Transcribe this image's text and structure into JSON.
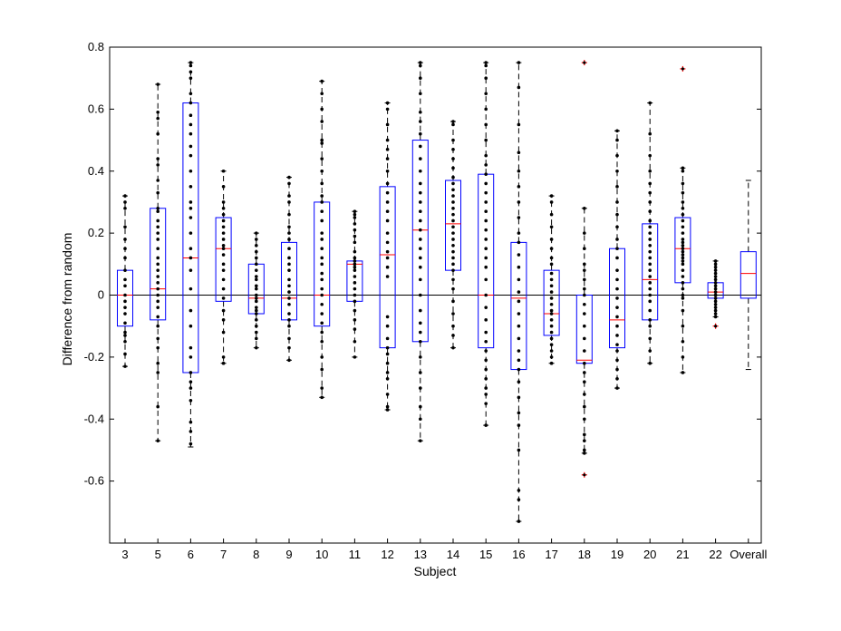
{
  "chart_data": {
    "type": "box",
    "xlabel": "Subject",
    "ylabel": "Difference from random",
    "ylim": [
      -0.8,
      0.8
    ],
    "yticks": [
      0.8,
      0.6,
      0.4,
      0.2,
      0,
      -0.2,
      -0.4,
      -0.6
    ],
    "ytick_labels": [
      "0.8",
      "0.6",
      "0.4",
      "0.2",
      "0",
      "-0.2",
      "-0.4",
      "-0.6"
    ],
    "grid": false,
    "reference_line_y": 0,
    "colors": {
      "box": "#0000ff",
      "median": "#ff0000",
      "whisker": "#000000",
      "points": "#000000",
      "outlier": "#ff0000"
    },
    "categories": [
      "3",
      "5",
      "6",
      "7",
      "8",
      "9",
      "10",
      "11",
      "12",
      "13",
      "14",
      "15",
      "16",
      "17",
      "18",
      "19",
      "20",
      "21",
      "22",
      "Overall"
    ],
    "boxes": [
      {
        "q1": -0.1,
        "median": 0.0,
        "q3": 0.08,
        "wlow": -0.23,
        "whigh": 0.32,
        "outliers": []
      },
      {
        "q1": -0.08,
        "median": 0.02,
        "q3": 0.28,
        "wlow": -0.47,
        "whigh": 0.68,
        "outliers": []
      },
      {
        "q1": -0.25,
        "median": 0.12,
        "q3": 0.62,
        "wlow": -0.49,
        "whigh": 0.75,
        "outliers": []
      },
      {
        "q1": -0.02,
        "median": 0.15,
        "q3": 0.25,
        "wlow": -0.22,
        "whigh": 0.4,
        "outliers": []
      },
      {
        "q1": -0.06,
        "median": -0.01,
        "q3": 0.1,
        "wlow": -0.17,
        "whigh": 0.2,
        "outliers": []
      },
      {
        "q1": -0.08,
        "median": -0.01,
        "q3": 0.17,
        "wlow": -0.21,
        "whigh": 0.38,
        "outliers": []
      },
      {
        "q1": -0.1,
        "median": 0.0,
        "q3": 0.3,
        "wlow": -0.33,
        "whigh": 0.69,
        "outliers": []
      },
      {
        "q1": -0.02,
        "median": 0.1,
        "q3": 0.11,
        "wlow": -0.2,
        "whigh": 0.27,
        "outliers": []
      },
      {
        "q1": -0.17,
        "median": 0.13,
        "q3": 0.35,
        "wlow": -0.37,
        "whigh": 0.62,
        "outliers": []
      },
      {
        "q1": -0.15,
        "median": 0.21,
        "q3": 0.5,
        "wlow": -0.47,
        "whigh": 0.75,
        "outliers": []
      },
      {
        "q1": 0.08,
        "median": 0.23,
        "q3": 0.37,
        "wlow": -0.17,
        "whigh": 0.56,
        "outliers": []
      },
      {
        "q1": -0.17,
        "median": 0.0,
        "q3": 0.39,
        "wlow": -0.42,
        "whigh": 0.75,
        "outliers": []
      },
      {
        "q1": -0.24,
        "median": -0.01,
        "q3": 0.17,
        "wlow": -0.73,
        "whigh": 0.75,
        "outliers": []
      },
      {
        "q1": -0.13,
        "median": -0.06,
        "q3": 0.08,
        "wlow": -0.22,
        "whigh": 0.32,
        "outliers": []
      },
      {
        "q1": -0.22,
        "median": -0.21,
        "q3": 0.0,
        "wlow": -0.51,
        "whigh": 0.28,
        "outliers": [
          0.75,
          -0.58
        ]
      },
      {
        "q1": -0.17,
        "median": -0.08,
        "q3": 0.15,
        "wlow": -0.3,
        "whigh": 0.53,
        "outliers": []
      },
      {
        "q1": -0.08,
        "median": 0.05,
        "q3": 0.23,
        "wlow": -0.22,
        "whigh": 0.62,
        "outliers": []
      },
      {
        "q1": 0.04,
        "median": 0.15,
        "q3": 0.25,
        "wlow": -0.25,
        "whigh": 0.41,
        "outliers": [
          0.73
        ]
      },
      {
        "q1": -0.01,
        "median": 0.01,
        "q3": 0.04,
        "wlow": -0.07,
        "whigh": 0.11,
        "outliers": [
          -0.1
        ]
      },
      {
        "q1": -0.01,
        "median": 0.07,
        "q3": 0.14,
        "wlow": -0.24,
        "whigh": 0.37,
        "outliers": []
      }
    ],
    "points": [
      [
        0.32,
        0.3,
        0.28,
        0.22,
        0.18,
        0.15,
        0.12,
        0.08,
        0.05,
        0.03,
        0.0,
        -0.02,
        -0.04,
        -0.06,
        -0.09,
        -0.12,
        -0.13,
        -0.15,
        -0.19,
        -0.23
      ],
      [
        0.68,
        0.59,
        0.57,
        0.52,
        0.44,
        0.42,
        0.37,
        0.33,
        0.28,
        0.27,
        0.24,
        0.22,
        0.2,
        0.18,
        0.15,
        0.12,
        0.1,
        0.08,
        0.06,
        0.04,
        0.02,
        0.0,
        -0.02,
        -0.04,
        -0.07,
        -0.1,
        -0.14,
        -0.17,
        -0.22,
        -0.25,
        -0.36,
        -0.47
      ],
      [
        0.75,
        0.74,
        0.72,
        0.7,
        0.65,
        0.62,
        0.58,
        0.55,
        0.52,
        0.48,
        0.45,
        0.4,
        0.35,
        0.3,
        0.28,
        0.25,
        0.2,
        0.15,
        0.12,
        0.08,
        0.02,
        -0.05,
        -0.1,
        -0.17,
        -0.2,
        -0.25,
        -0.28,
        -0.3,
        -0.34,
        -0.41,
        -0.44,
        -0.48
      ],
      [
        0.4,
        0.35,
        0.3,
        0.28,
        0.26,
        0.24,
        0.22,
        0.2,
        0.18,
        0.16,
        0.15,
        0.13,
        0.1,
        0.08,
        0.05,
        0.02,
        -0.01,
        -0.05,
        -0.08,
        -0.12,
        -0.2,
        -0.22
      ],
      [
        0.2,
        0.18,
        0.16,
        0.14,
        0.12,
        0.1,
        0.08,
        0.06,
        0.05,
        0.03,
        0.02,
        0.0,
        -0.01,
        -0.02,
        -0.04,
        -0.05,
        -0.06,
        -0.08,
        -0.1,
        -0.12,
        -0.14,
        -0.17
      ],
      [
        0.38,
        0.36,
        0.32,
        0.3,
        0.26,
        0.22,
        0.2,
        0.18,
        0.15,
        0.12,
        0.1,
        0.08,
        0.05,
        0.03,
        0.01,
        -0.01,
        -0.03,
        -0.06,
        -0.08,
        -0.1,
        -0.14,
        -0.17,
        -0.21
      ],
      [
        0.69,
        0.65,
        0.6,
        0.56,
        0.5,
        0.49,
        0.44,
        0.4,
        0.36,
        0.32,
        0.3,
        0.27,
        0.24,
        0.2,
        0.18,
        0.15,
        0.12,
        0.1,
        0.07,
        0.05,
        0.02,
        0.0,
        -0.03,
        -0.06,
        -0.09,
        -0.12,
        -0.15,
        -0.2,
        -0.24,
        -0.3,
        -0.33
      ],
      [
        0.27,
        0.26,
        0.25,
        0.23,
        0.21,
        0.19,
        0.17,
        0.14,
        0.12,
        0.11,
        0.1,
        0.09,
        0.08,
        0.06,
        0.04,
        0.02,
        0.0,
        -0.02,
        -0.05,
        -0.08,
        -0.11,
        -0.15,
        -0.2
      ],
      [
        0.62,
        0.6,
        0.55,
        0.5,
        0.47,
        0.44,
        0.4,
        0.36,
        0.33,
        0.3,
        0.27,
        0.24,
        0.2,
        0.17,
        0.14,
        0.12,
        0.09,
        0.06,
        -0.07,
        -0.1,
        -0.14,
        -0.17,
        -0.19,
        -0.22,
        -0.25,
        -0.27,
        -0.32,
        -0.36,
        -0.37
      ],
      [
        0.75,
        0.74,
        0.7,
        0.65,
        0.59,
        0.56,
        0.52,
        0.48,
        0.44,
        0.4,
        0.36,
        0.33,
        0.3,
        0.27,
        0.24,
        0.21,
        0.18,
        0.15,
        0.12,
        0.09,
        0.05,
        0.0,
        -0.05,
        -0.09,
        -0.12,
        -0.15,
        -0.2,
        -0.25,
        -0.3,
        -0.36,
        -0.4,
        -0.47
      ],
      [
        0.56,
        0.55,
        0.5,
        0.47,
        0.44,
        0.41,
        0.38,
        0.36,
        0.34,
        0.32,
        0.3,
        0.28,
        0.26,
        0.24,
        0.22,
        0.2,
        0.18,
        0.16,
        0.14,
        0.12,
        0.1,
        0.08,
        0.05,
        0.02,
        -0.02,
        -0.06,
        -0.1,
        -0.13,
        -0.17
      ],
      [
        0.75,
        0.74,
        0.7,
        0.65,
        0.6,
        0.55,
        0.5,
        0.45,
        0.42,
        0.39,
        0.36,
        0.33,
        0.3,
        0.27,
        0.24,
        0.21,
        0.18,
        0.15,
        0.12,
        0.09,
        0.05,
        0.0,
        -0.04,
        -0.08,
        -0.12,
        -0.15,
        -0.18,
        -0.21,
        -0.24,
        -0.27,
        -0.3,
        -0.32,
        -0.35,
        -0.42
      ],
      [
        0.75,
        0.67,
        0.55,
        0.46,
        0.4,
        0.35,
        0.3,
        0.25,
        0.2,
        0.17,
        0.13,
        0.09,
        0.05,
        0.01,
        -0.02,
        -0.06,
        -0.1,
        -0.14,
        -0.18,
        -0.21,
        -0.24,
        -0.28,
        -0.33,
        -0.38,
        -0.42,
        -0.5,
        -0.63,
        -0.66,
        -0.73
      ],
      [
        0.32,
        0.3,
        0.26,
        0.22,
        0.18,
        0.15,
        0.12,
        0.1,
        0.07,
        0.05,
        0.03,
        0.01,
        -0.01,
        -0.03,
        -0.05,
        -0.06,
        -0.08,
        -0.1,
        -0.12,
        -0.14,
        -0.16,
        -0.18,
        -0.2,
        -0.22
      ],
      [
        0.28,
        0.2,
        0.15,
        0.1,
        0.08,
        0.05,
        0.02,
        0.0,
        -0.03,
        -0.06,
        -0.1,
        -0.14,
        -0.18,
        -0.22,
        -0.25,
        -0.28,
        -0.32,
        -0.36,
        -0.4,
        -0.45,
        -0.47,
        -0.5,
        -0.51
      ],
      [
        0.53,
        0.5,
        0.45,
        0.4,
        0.35,
        0.3,
        0.26,
        0.22,
        0.18,
        0.15,
        0.12,
        0.08,
        0.05,
        0.02,
        -0.01,
        -0.04,
        -0.07,
        -0.1,
        -0.13,
        -0.16,
        -0.18,
        -0.21,
        -0.24,
        -0.27,
        -0.3
      ],
      [
        0.62,
        0.52,
        0.45,
        0.4,
        0.36,
        0.33,
        0.3,
        0.27,
        0.24,
        0.22,
        0.2,
        0.18,
        0.16,
        0.14,
        0.12,
        0.1,
        0.08,
        0.06,
        0.04,
        0.02,
        0.0,
        -0.02,
        -0.05,
        -0.08,
        -0.1,
        -0.14,
        -0.18,
        -0.22
      ],
      [
        0.41,
        0.4,
        0.36,
        0.33,
        0.3,
        0.28,
        0.26,
        0.24,
        0.22,
        0.2,
        0.18,
        0.17,
        0.16,
        0.15,
        0.14,
        0.13,
        0.12,
        0.11,
        0.1,
        0.08,
        0.06,
        0.04,
        0.02,
        0.0,
        -0.01,
        -0.05,
        -0.1,
        -0.15,
        -0.2,
        -0.25
      ],
      [
        0.11,
        0.1,
        0.09,
        0.08,
        0.07,
        0.06,
        0.05,
        0.04,
        0.03,
        0.02,
        0.01,
        0.0,
        0.0,
        -0.01,
        -0.02,
        -0.03,
        -0.04,
        -0.05,
        -0.06,
        -0.07
      ],
      []
    ]
  }
}
